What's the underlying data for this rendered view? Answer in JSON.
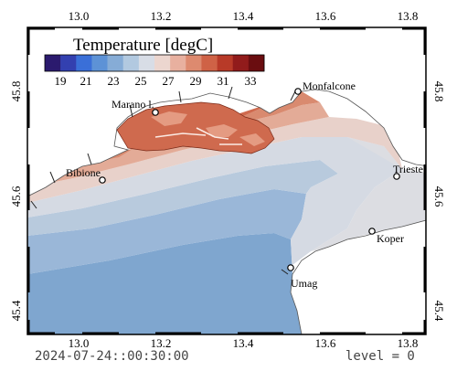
{
  "colorbar": {
    "title": "Temperature [degC]",
    "tick_labels": [
      "19",
      "21",
      "23",
      "25",
      "27",
      "29",
      "31",
      "33"
    ],
    "colors": [
      "#2b1a6e",
      "#3340b0",
      "#3a6fd8",
      "#5d92d6",
      "#86acd6",
      "#b2c9e0",
      "#d8dde6",
      "#ecd6cf",
      "#e8b09f",
      "#dd8a6f",
      "#cf6246",
      "#b83a28",
      "#911b1b",
      "#6a0d10"
    ]
  },
  "axes": {
    "x_ticks": [
      "13.0",
      "13.2",
      "13.4",
      "13.6",
      "13.8"
    ],
    "y_ticks": [
      "45.4",
      "45.6",
      "45.8"
    ]
  },
  "places": [
    {
      "name": "Marano l."
    },
    {
      "name": "Monfalcone"
    },
    {
      "name": "Bibione"
    },
    {
      "name": "Trieste"
    },
    {
      "name": "Koper"
    },
    {
      "name": "Umag"
    }
  ],
  "footer": {
    "timestamp": "2024-07-24::00:30:00",
    "level": "level = 0"
  }
}
